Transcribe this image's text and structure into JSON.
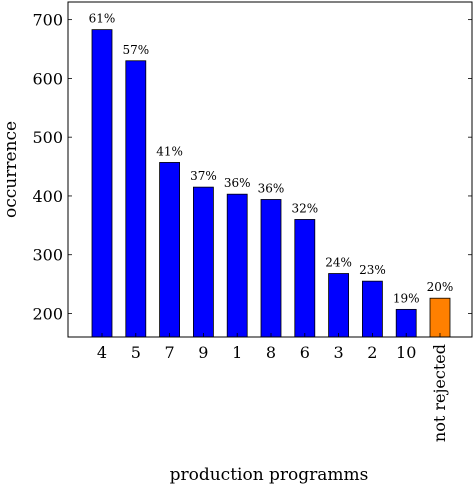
{
  "chart_data": {
    "type": "bar",
    "xlabel": "production programms",
    "ylabel": "occurrence",
    "ylim": [
      160,
      730
    ],
    "yticks": [
      200,
      300,
      400,
      500,
      600,
      700
    ],
    "grid": false,
    "categories": [
      "4",
      "5",
      "7",
      "9",
      "1",
      "8",
      "6",
      "3",
      "2",
      "10",
      "not rejected"
    ],
    "values": [
      683,
      630,
      457,
      415,
      403,
      394,
      360,
      268,
      255,
      207,
      226
    ],
    "data_labels": [
      "61%",
      "57%",
      "41%",
      "37%",
      "36%",
      "36%",
      "32%",
      "24%",
      "23%",
      "19%",
      "20%"
    ],
    "bar_colors": [
      "#0000ff",
      "#0000ff",
      "#0000ff",
      "#0000ff",
      "#0000ff",
      "#0000ff",
      "#0000ff",
      "#0000ff",
      "#0000ff",
      "#0000ff",
      "#ff8000"
    ]
  }
}
